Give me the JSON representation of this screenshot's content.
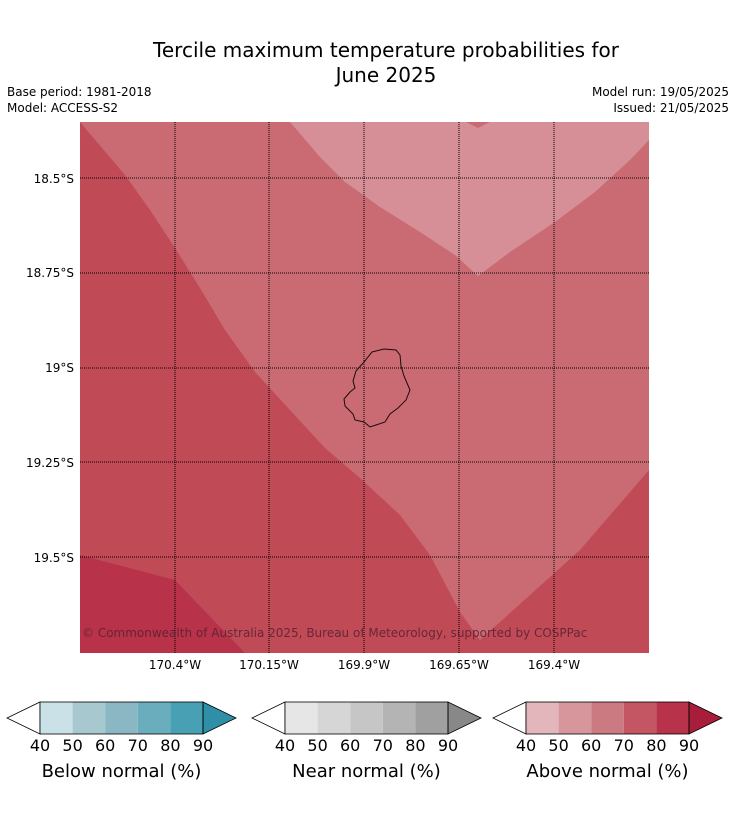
{
  "title_line1": "Tercile maximum temperature probabilities for",
  "title_line2": "June 2025",
  "base_period": "Base period: 1981-2018",
  "model": "Model: ACCESS-S2",
  "model_run": "Model run: 19/05/2025",
  "issued": "Issued: 21/05/2025",
  "map": {
    "latitude_labels": [
      "18.5°S",
      "18.75°S",
      "19°S",
      "19.25°S",
      "19.5°S"
    ],
    "longitude_labels": [
      "170.4°W",
      "170.15°W",
      "169.9°W",
      "169.65°W",
      "169.4°W"
    ],
    "copyright": "© Commonwealth of Australia 2025, Bureau of Meteorology, supported by COSPPac",
    "colors": {
      "above_50": "#d68f96",
      "above_60": "#ca6b74",
      "above_70": "#c04b57",
      "above_80": "#b8334a",
      "coast": "#1a0a0a",
      "gridline": "#000000"
    }
  },
  "colorbars": [
    {
      "label": "Below normal (%)",
      "ticks": [
        "40",
        "50",
        "60",
        "70",
        "80",
        "90"
      ],
      "colors": [
        "#c9e1e7",
        "#a7c8ce",
        "#8ab7c3",
        "#6aadbd",
        "#47a0b3",
        "#2f8fa6"
      ]
    },
    {
      "label": "Near normal (%)",
      "ticks": [
        "40",
        "50",
        "60",
        "70",
        "80",
        "90"
      ],
      "colors": [
        "#e6e6e6",
        "#d6d6d6",
        "#c6c6c6",
        "#b4b4b4",
        "#a0a0a0",
        "#888888"
      ]
    },
    {
      "label": "Above normal (%)",
      "ticks": [
        "40",
        "50",
        "60",
        "70",
        "80",
        "90"
      ],
      "colors": [
        "#e2b6bb",
        "#d6969c",
        "#cc7a81",
        "#c35662",
        "#b8334a",
        "#a81e3a"
      ]
    }
  ]
}
